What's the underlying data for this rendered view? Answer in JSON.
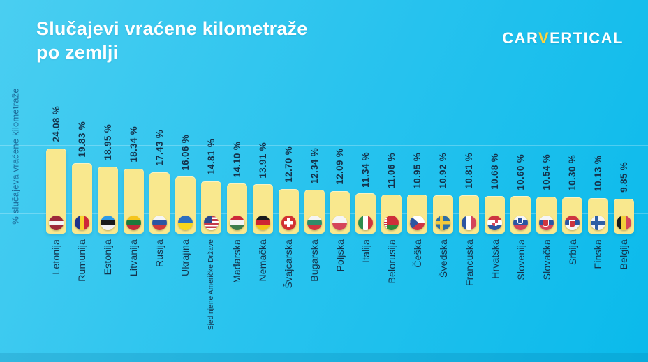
{
  "header": {
    "title_line1": "Slučajevi vraćene kilometraže",
    "title_line2": "po zemlji",
    "logo": {
      "part1": "CAR",
      "accent": "V",
      "part2": "ERTICAL"
    }
  },
  "colors": {
    "background_top": "#4ACEF1",
    "background_bottom": "#0ABAEB",
    "bar": "#F9E88E",
    "label_text": "#14334C",
    "axis_text": "#1D6D9B",
    "logo_accent": "#FFD43B",
    "title_text": "#FFFFFF"
  },
  "chart_data": {
    "type": "bar",
    "title": "Slučajevi vraćene kilometraže po zemlji",
    "ylabel": "% slučajeva vraćene kilometraže",
    "xlabel": "",
    "ylim": [
      0,
      25
    ],
    "grid": "faint horizontal",
    "legend": "none",
    "bar_color": "#F9E88E",
    "categories": [
      "Letonija",
      "Rumunija",
      "Estonija",
      "Litvanija",
      "Rusija",
      "Ukrajina",
      "Sjedinjene Američke Države",
      "Mađarska",
      "Nemačka",
      "Švajcarska",
      "Bugarska",
      "Poljska",
      "Italija",
      "Belorusija",
      "Češka",
      "Švedska",
      "Francuska",
      "Hrvatska",
      "Slovenija",
      "Slovačka",
      "Srbija",
      "Finska",
      "Belgija"
    ],
    "values": [
      24.08,
      19.83,
      18.95,
      18.34,
      17.43,
      16.06,
      14.81,
      14.1,
      13.91,
      12.7,
      12.34,
      12.09,
      11.34,
      11.06,
      10.95,
      10.92,
      10.81,
      10.68,
      10.6,
      10.54,
      10.3,
      10.13,
      9.85
    ],
    "value_labels": [
      "24.08 %",
      "19.83 %",
      "18.95 %",
      "18.34 %",
      "17.43 %",
      "16.06 %",
      "14.81 %",
      "14.10 %",
      "13.91 %",
      "12.70 %",
      "12.34 %",
      "12.09 %",
      "11.34 %",
      "11.06 %",
      "10.95 %",
      "10.92 %",
      "10.81 %",
      "10.68 %",
      "10.60 %",
      "10.54 %",
      "10.30 %",
      "10.13 %",
      "9.85 %"
    ],
    "flags": [
      "lv",
      "ro",
      "ee",
      "lt",
      "ru",
      "ua",
      "us",
      "hu",
      "de",
      "ch",
      "bg",
      "pl",
      "it",
      "by",
      "cz",
      "se",
      "fr",
      "hr",
      "si",
      "sk",
      "rs",
      "fi",
      "be"
    ]
  }
}
